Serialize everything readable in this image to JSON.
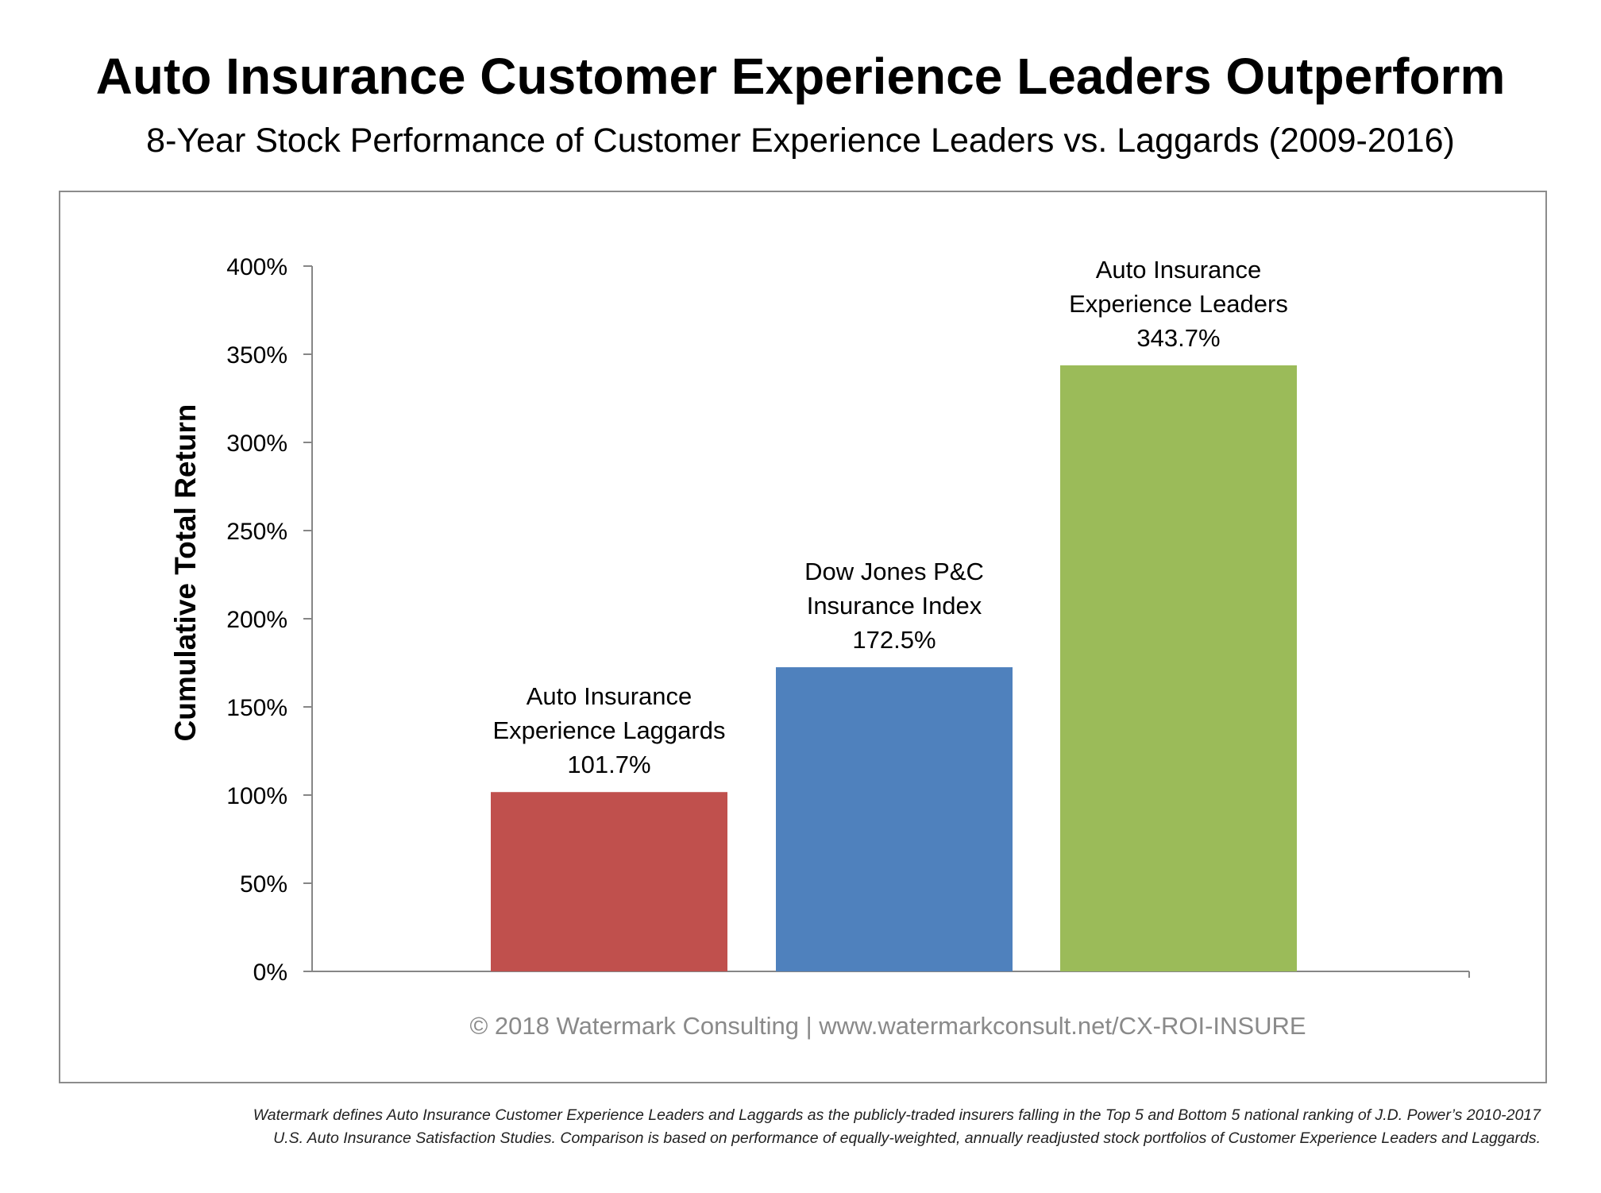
{
  "title": "Auto Insurance Customer Experience Leaders Outperform",
  "subtitle": "8-Year Stock Performance of Customer Experience Leaders vs. Laggards (2009-2016)",
  "watermark": "© 2018 Watermark Consulting | www.watermarkconsult.net/CX-ROI-INSURE",
  "footnote": {
    "line1": "Watermark defines Auto Insurance Customer Experience Leaders and Laggards as the publicly-traded insurers falling in the Top 5 and Bottom 5 national ranking of J.D. Power’s 2010-2017",
    "line2": "U.S. Auto Insurance Satisfaction Studies. Comparison is based on performance of equally-weighted, annually readjusted stock portfolios of Customer Experience Leaders and Laggards."
  },
  "chart_data": {
    "type": "bar",
    "ylabel": "Cumulative Total Return",
    "xlabel": "",
    "ylim": [
      0,
      400
    ],
    "yticks": [
      "0%",
      "50%",
      "100%",
      "150%",
      "200%",
      "250%",
      "300%",
      "350%",
      "400%"
    ],
    "ytick_values": [
      0,
      50,
      100,
      150,
      200,
      250,
      300,
      350,
      400
    ],
    "grid": false,
    "bars": [
      {
        "label_lines": [
          "Auto Insurance",
          "Experience Laggards"
        ],
        "value": 101.7,
        "value_label": "101.7%",
        "color": "#c0504d"
      },
      {
        "label_lines": [
          "Dow Jones P&C",
          "Insurance Index"
        ],
        "value": 172.5,
        "value_label": "172.5%",
        "color": "#4f81bd"
      },
      {
        "label_lines": [
          "Auto Insurance",
          "Experience Leaders"
        ],
        "value": 343.7,
        "value_label": "343.7%",
        "color": "#9bbb59"
      }
    ]
  }
}
